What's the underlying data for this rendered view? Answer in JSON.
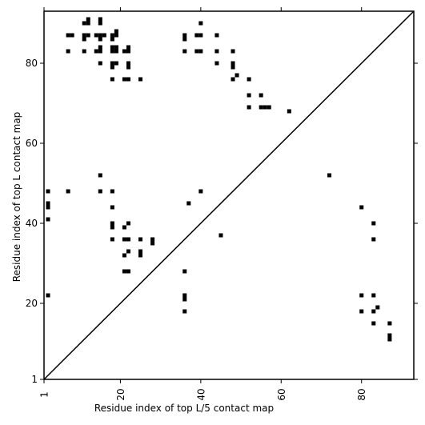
{
  "chart_data": {
    "type": "scatter",
    "title": "",
    "xlabel": "Residue index of top L/5 contact map",
    "ylabel": "Residue index of top L contact map",
    "xlim": [
      1,
      93
    ],
    "ylim": [
      1,
      93
    ],
    "x_ticks": [
      {
        "value": 1,
        "label": "1"
      },
      {
        "value": 20,
        "label": "20"
      },
      {
        "value": 40,
        "label": "40"
      },
      {
        "value": 60,
        "label": "60"
      },
      {
        "value": 80,
        "label": "80"
      }
    ],
    "y_ticks": [
      {
        "value": 1,
        "label": "1"
      },
      {
        "value": 20,
        "label": "20"
      },
      {
        "value": 40,
        "label": "40"
      },
      {
        "value": 60,
        "label": "60"
      },
      {
        "value": 80,
        "label": "80"
      }
    ],
    "grid": false,
    "marker_color": "#000000",
    "diagonal": true,
    "series": [
      {
        "region": "upper-left",
        "points": [
          [
            11,
            90
          ],
          [
            12,
            90
          ],
          [
            12,
            91
          ],
          [
            15,
            90
          ],
          [
            15,
            91
          ],
          [
            19,
            87
          ],
          [
            19,
            88
          ],
          [
            7,
            87
          ],
          [
            8,
            87
          ],
          [
            11,
            87
          ],
          [
            11,
            86
          ],
          [
            12,
            87
          ],
          [
            14,
            87
          ],
          [
            15,
            87
          ],
          [
            16,
            87
          ],
          [
            15,
            86
          ],
          [
            18,
            87
          ],
          [
            18,
            86
          ],
          [
            7,
            83
          ],
          [
            11,
            83
          ],
          [
            14,
            83
          ],
          [
            15,
            83
          ],
          [
            15,
            84
          ],
          [
            18,
            84
          ],
          [
            19,
            84
          ],
          [
            18,
            83
          ],
          [
            19,
            83
          ],
          [
            21,
            83
          ],
          [
            22,
            83
          ],
          [
            22,
            84
          ],
          [
            15,
            80
          ],
          [
            18,
            80
          ],
          [
            19,
            80
          ],
          [
            18,
            79
          ],
          [
            22,
            80
          ],
          [
            22,
            79
          ],
          [
            18,
            76
          ],
          [
            21,
            76
          ],
          [
            22,
            76
          ],
          [
            25,
            76
          ],
          [
            36,
            87
          ],
          [
            36,
            86
          ],
          [
            36,
            83
          ],
          [
            39,
            87
          ],
          [
            40,
            87
          ],
          [
            40,
            90
          ],
          [
            39,
            83
          ],
          [
            40,
            83
          ],
          [
            44,
            87
          ],
          [
            44,
            83
          ],
          [
            44,
            80
          ],
          [
            48,
            83
          ],
          [
            48,
            80
          ],
          [
            48,
            79
          ],
          [
            48,
            76
          ],
          [
            49,
            77
          ],
          [
            52,
            76
          ],
          [
            52,
            72
          ],
          [
            52,
            69
          ],
          [
            55,
            72
          ],
          [
            55,
            69
          ],
          [
            56,
            69
          ],
          [
            57,
            69
          ],
          [
            62,
            68
          ]
        ]
      },
      {
        "region": "lower-right",
        "points": [
          [
            2,
            48
          ],
          [
            2,
            45
          ],
          [
            2,
            44
          ],
          [
            2,
            41
          ],
          [
            2,
            22
          ],
          [
            7,
            48
          ],
          [
            15,
            52
          ],
          [
            15,
            48
          ],
          [
            18,
            48
          ],
          [
            18,
            44
          ],
          [
            18,
            40
          ],
          [
            18,
            39
          ],
          [
            18,
            36
          ],
          [
            21,
            39
          ],
          [
            22,
            40
          ],
          [
            21,
            36
          ],
          [
            22,
            36
          ],
          [
            25,
            36
          ],
          [
            22,
            33
          ],
          [
            21,
            32
          ],
          [
            25,
            33
          ],
          [
            25,
            32
          ],
          [
            28,
            36
          ],
          [
            28,
            35
          ],
          [
            21,
            28
          ],
          [
            22,
            28
          ],
          [
            36,
            28
          ],
          [
            36,
            22
          ],
          [
            36,
            21
          ],
          [
            36,
            18
          ],
          [
            37,
            45
          ],
          [
            40,
            48
          ],
          [
            45,
            37
          ],
          [
            72,
            52
          ],
          [
            80,
            44
          ],
          [
            80,
            22
          ],
          [
            80,
            18
          ],
          [
            83,
            40
          ],
          [
            83,
            36
          ],
          [
            83,
            22
          ],
          [
            83,
            18
          ],
          [
            84,
            19
          ],
          [
            83,
            15
          ],
          [
            87,
            15
          ],
          [
            87,
            12
          ],
          [
            87,
            11
          ]
        ]
      }
    ]
  }
}
